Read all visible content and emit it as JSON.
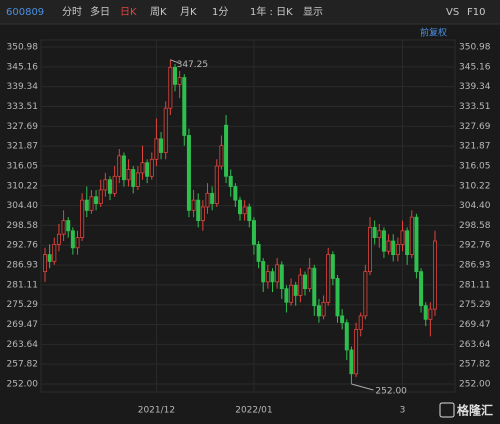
{
  "toolbar": {
    "code": "600809",
    "tabs": [
      "分时",
      "多日",
      "日K",
      "周K",
      "月K",
      "1分",
      "1年 : 日K",
      "显示"
    ],
    "right": [
      "VS",
      "F10"
    ]
  },
  "chart_data": {
    "type": "candlestick",
    "adjust_label": "前复权",
    "max_label": "347.25",
    "min_label": "252.00",
    "watermark": "格隆汇",
    "up_color": "#e0443c",
    "down_color": "#2fbf4f",
    "ylim": [
      252.0,
      350.98
    ],
    "yticks": [
      {
        "value": 350.98,
        "label": "350.98"
      },
      {
        "value": 345.16,
        "label": "345.16"
      },
      {
        "value": 339.34,
        "label": "339.34"
      },
      {
        "value": 333.51,
        "label": "333.51"
      },
      {
        "value": 327.69,
        "label": "327.69"
      },
      {
        "value": 321.87,
        "label": "321.87"
      },
      {
        "value": 316.05,
        "label": "316.05"
      },
      {
        "value": 310.22,
        "label": "310.22"
      },
      {
        "value": 304.4,
        "label": "304.40"
      },
      {
        "value": 298.58,
        "label": "298.58"
      },
      {
        "value": 292.76,
        "label": "292.76"
      },
      {
        "value": 286.93,
        "label": "286.93"
      },
      {
        "value": 281.11,
        "label": "281.11"
      },
      {
        "value": 275.29,
        "label": "275.29"
      },
      {
        "value": 269.47,
        "label": "269.47"
      },
      {
        "value": 263.64,
        "label": "263.64"
      },
      {
        "value": 257.82,
        "label": "257.82"
      },
      {
        "value": 252.0,
        "label": "252.00"
      }
    ],
    "xticks": [
      {
        "value": 24,
        "label": "2021/12"
      },
      {
        "value": 45,
        "label": "2022/01"
      },
      {
        "value": 77,
        "label": "3"
      }
    ],
    "open": [
      285,
      290,
      288,
      293,
      296,
      300,
      297,
      292,
      295,
      306,
      303,
      307,
      305,
      309,
      312,
      308,
      313,
      319,
      312,
      315,
      310,
      314,
      317,
      313,
      318,
      324,
      320,
      333,
      345,
      340,
      342,
      325,
      303,
      306,
      300,
      304,
      308,
      305,
      316,
      328,
      313,
      310,
      306,
      302,
      304,
      300,
      293,
      288,
      282,
      285,
      282,
      287,
      280,
      276,
      281,
      278,
      284,
      280,
      286,
      275,
      272,
      276,
      290,
      283,
      272,
      270,
      262,
      255,
      268,
      272,
      285,
      298,
      295,
      297,
      291,
      294,
      290,
      293,
      297,
      290,
      301,
      285,
      275,
      271,
      274
    ],
    "close": [
      290,
      288,
      293,
      296,
      300,
      297,
      292,
      295,
      306,
      303,
      307,
      305,
      309,
      312,
      308,
      313,
      319,
      312,
      315,
      310,
      314,
      317,
      313,
      318,
      324,
      320,
      333,
      345,
      340,
      342,
      325,
      303,
      306,
      300,
      304,
      308,
      305,
      316,
      322,
      313,
      310,
      306,
      302,
      304,
      300,
      293,
      288,
      282,
      285,
      282,
      287,
      280,
      276,
      281,
      278,
      284,
      280,
      286,
      275,
      272,
      276,
      290,
      283,
      272,
      270,
      262,
      255,
      268,
      272,
      285,
      298,
      295,
      297,
      291,
      294,
      290,
      293,
      297,
      290,
      301,
      285,
      275,
      271,
      274,
      294
    ],
    "high": [
      292,
      293,
      295,
      299,
      303,
      301,
      298,
      297,
      308,
      310,
      309,
      309,
      312,
      314,
      313,
      316,
      321,
      320,
      318,
      316,
      316,
      322,
      318,
      320,
      330,
      326,
      335,
      347.25,
      346,
      344,
      343,
      327,
      309,
      308,
      306,
      311,
      310,
      318,
      325,
      331,
      315,
      311,
      307,
      306,
      305,
      301,
      294,
      289,
      287,
      286,
      289,
      288,
      281,
      283,
      282,
      286,
      285,
      289,
      287,
      277,
      278,
      292,
      291,
      284,
      274,
      271,
      263,
      270,
      273,
      287,
      301,
      300,
      299,
      298,
      296,
      296,
      295,
      300,
      298,
      303,
      302,
      286,
      276,
      276,
      297
    ],
    "low": [
      282,
      286,
      287,
      291,
      294,
      295,
      290,
      290,
      294,
      301,
      302,
      303,
      304,
      307,
      306,
      307,
      311,
      310,
      310,
      308,
      309,
      312,
      311,
      312,
      316,
      318,
      318,
      331,
      338,
      336,
      322,
      301,
      301,
      298,
      297,
      302,
      303,
      304,
      315,
      311,
      307,
      304,
      300,
      300,
      298,
      290,
      286,
      279,
      280,
      279,
      280,
      277,
      273,
      275,
      275,
      276,
      278,
      279,
      272,
      270,
      271,
      275,
      281,
      270,
      268,
      259,
      252.0,
      254,
      266,
      271,
      284,
      293,
      292,
      289,
      290,
      288,
      288,
      291,
      287,
      289,
      283,
      273,
      269,
      266,
      272
    ]
  }
}
